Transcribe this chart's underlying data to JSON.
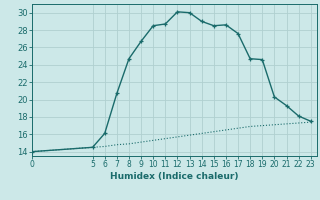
{
  "xlabel": "Humidex (Indice chaleur)",
  "ylabel": "",
  "bg_color": "#cce8e8",
  "grid_color": "#b0d0d0",
  "line_color": "#1a6b6b",
  "x_ticks": [
    0,
    5,
    6,
    7,
    8,
    9,
    10,
    11,
    12,
    13,
    14,
    15,
    16,
    17,
    18,
    19,
    20,
    21,
    22,
    23
  ],
  "xlim": [
    0,
    23.5
  ],
  "ylim": [
    13.5,
    31
  ],
  "y_ticks": [
    14,
    16,
    18,
    20,
    22,
    24,
    26,
    28,
    30
  ],
  "curve1_x": [
    0,
    5,
    6,
    7,
    8,
    9,
    10,
    11,
    12,
    13,
    14,
    15,
    16,
    17,
    18,
    19,
    20,
    21,
    22,
    23
  ],
  "curve1_y": [
    14,
    14.5,
    16.1,
    20.7,
    24.7,
    26.7,
    28.5,
    28.7,
    30.1,
    30.0,
    29.0,
    28.5,
    28.6,
    27.6,
    24.7,
    24.6,
    20.3,
    19.3,
    18.1,
    17.5
  ],
  "curve2_x": [
    0,
    5,
    6,
    7,
    8,
    9,
    10,
    11,
    12,
    13,
    14,
    15,
    16,
    17,
    18,
    19,
    20,
    21,
    22,
    23
  ],
  "curve2_y": [
    14,
    14.5,
    14.6,
    14.8,
    14.9,
    15.1,
    15.3,
    15.5,
    15.7,
    15.9,
    16.1,
    16.3,
    16.5,
    16.7,
    16.9,
    17.0,
    17.1,
    17.2,
    17.3,
    17.4
  ]
}
